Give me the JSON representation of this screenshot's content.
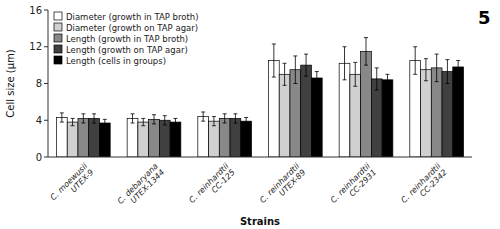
{
  "chart_data": {
    "type": "bar",
    "categories": [
      "C. moewusii\nUTEX-9",
      "C. debaryana\nUTEX-1344",
      "C. reinhardtii\nCC-125",
      "C. reinhardtii\nUTEX-89",
      "C. reinhardtii\nCC-2931",
      "C. reinhardtii\nCC-2342"
    ],
    "series": [
      {
        "name": "Diameter (growth in TAP broth)",
        "color": "#ffffff",
        "values": [
          4.3,
          4.2,
          4.4,
          10.5,
          10.2,
          10.5
        ],
        "errors": [
          0.5,
          0.5,
          0.5,
          1.8,
          1.8,
          1.5
        ]
      },
      {
        "name": "Diameter (growth on TAP agar)",
        "color": "#d0d0d0",
        "values": [
          3.8,
          3.8,
          3.9,
          9.0,
          9.0,
          9.5
        ],
        "errors": [
          0.4,
          0.4,
          0.5,
          1.2,
          1.3,
          1.2
        ]
      },
      {
        "name": "Length (growth in TAP broth)",
        "color": "#888888",
        "values": [
          4.2,
          4.1,
          4.2,
          9.5,
          11.5,
          9.7
        ],
        "errors": [
          0.5,
          0.5,
          0.5,
          1.5,
          1.5,
          1.5
        ]
      },
      {
        "name": "Length (growth on TAP agar)",
        "color": "#404040",
        "values": [
          4.2,
          4.0,
          4.2,
          10.0,
          8.5,
          9.3
        ],
        "errors": [
          0.5,
          0.5,
          0.5,
          1.2,
          1.2,
          1.3
        ]
      },
      {
        "name": "Length (cells in groups)",
        "color": "#000000",
        "values": [
          3.7,
          3.8,
          3.9,
          8.6,
          8.4,
          9.8
        ],
        "errors": [
          0.4,
          0.4,
          0.4,
          0.7,
          0.6,
          0.7
        ]
      }
    ],
    "ylabel": "Cell size (µm)",
    "xlabel": "Strains",
    "ylim": [
      0,
      16
    ],
    "yticks": [
      0,
      4,
      8,
      12,
      16
    ],
    "legend": "upper left",
    "annotations": [
      "5"
    ]
  }
}
